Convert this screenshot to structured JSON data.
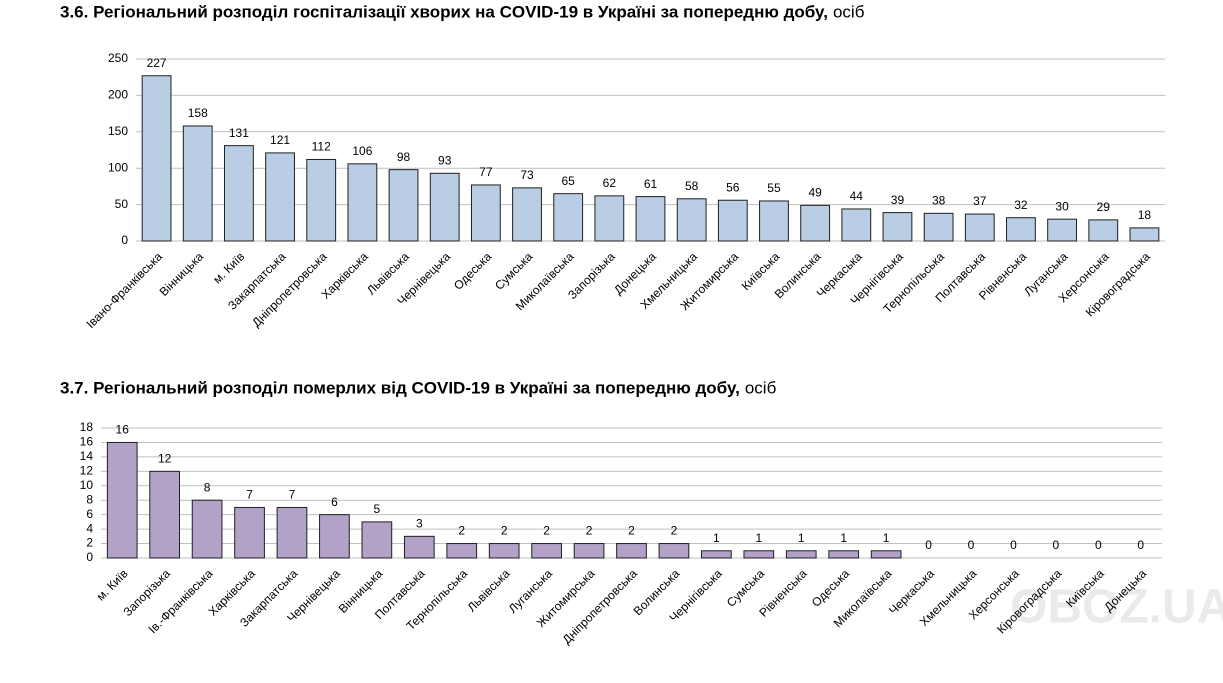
{
  "chart_data": [
    {
      "type": "bar",
      "title": "3.6.  Регіональний розподіл госпіталізації хворих на COVID-19 в Україні за попередню добу,",
      "unit": "осіб",
      "categories": [
        "Івано-Франківська",
        "Вінницька",
        "м. Київ",
        "Закарпатська",
        "Дніпропетровська",
        "Харківська",
        "Львівська",
        "Чернівецька",
        "Одеська",
        "Сумська",
        "Миколаївська",
        "Запорізька",
        "Донецька",
        "Хмельницька",
        "Житомирська",
        "Київська",
        "Волинська",
        "Черкаська",
        "Чернігівська",
        "Тернопільська",
        "Полтавська",
        "Рівненська",
        "Луганська",
        "Херсонська",
        "Кіровоградська"
      ],
      "values": [
        227,
        158,
        131,
        121,
        112,
        106,
        98,
        93,
        77,
        73,
        65,
        62,
        61,
        58,
        56,
        55,
        49,
        44,
        39,
        38,
        37,
        32,
        30,
        29,
        18
      ],
      "color": "#b9cde5",
      "ylim": [
        0,
        250
      ],
      "yticks": [
        0,
        50,
        100,
        150,
        200,
        250
      ],
      "grid": true
    },
    {
      "type": "bar",
      "title": "3.7.  Регіональний розподіл померлих від COVID-19 в Україні за попередню добу,",
      "unit": "осіб",
      "categories": [
        "м. Київ",
        "Запорізька",
        "Ів.-Франківська",
        "Харківська",
        "Закарпатська",
        "Чернівецька",
        "Вінницька",
        "Полтавська",
        "Тернопільська",
        "Львівська",
        "Луганська",
        "Житомирська",
        "Дніпропетровська",
        "Волинська",
        "Чернігівська",
        "Сумська",
        "Рівненська",
        "Одеська",
        "Миколаївська",
        "Черкаська",
        "Хмельницька",
        "Херсонська",
        "Кіровоградська",
        "Київська",
        "Донецька"
      ],
      "values": [
        16,
        12,
        8,
        7,
        7,
        6,
        5,
        3,
        2,
        2,
        2,
        2,
        2,
        2,
        1,
        1,
        1,
        1,
        1,
        0,
        0,
        0,
        0,
        0,
        0
      ],
      "color": "#b3a2c7",
      "ylim": [
        0,
        18
      ],
      "yticks": [
        0,
        2,
        4,
        6,
        8,
        10,
        12,
        14,
        16,
        18
      ],
      "grid": true
    }
  ],
  "watermark": "OBOZ.UA"
}
